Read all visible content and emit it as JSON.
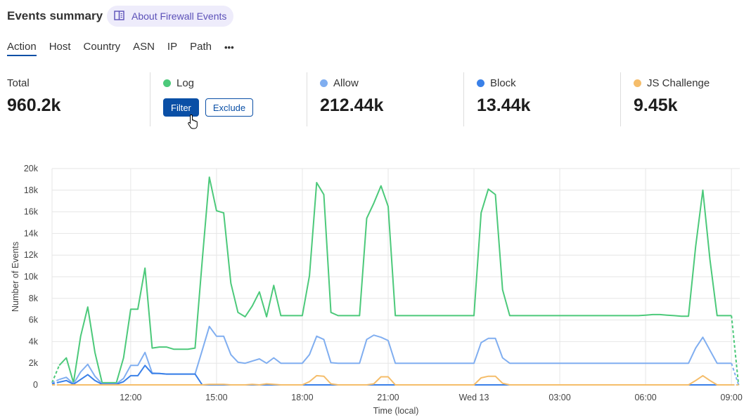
{
  "header": {
    "title": "Events summary",
    "about_label": "About Firewall Events"
  },
  "tabs": [
    {
      "label": "Action",
      "active": true
    },
    {
      "label": "Host"
    },
    {
      "label": "Country"
    },
    {
      "label": "ASN"
    },
    {
      "label": "IP"
    },
    {
      "label": "Path"
    },
    {
      "label": "•••"
    }
  ],
  "stats": {
    "total": {
      "label": "Total",
      "value": "960.2k"
    },
    "log": {
      "label": "Log",
      "color": "#4cc97a",
      "filter_label": "Filter",
      "exclude_label": "Exclude"
    },
    "allow": {
      "label": "Allow",
      "value": "212.44k",
      "color": "#80aef0"
    },
    "block": {
      "label": "Block",
      "value": "13.44k",
      "color": "#3a80e8"
    },
    "js": {
      "label": "JS Challenge",
      "value": "9.45k",
      "color": "#f5bd6a"
    }
  },
  "chart_data": {
    "type": "line",
    "xlabel": "Time (local)",
    "ylabel": "Number of Events",
    "ylim": [
      0,
      20000
    ],
    "yticks": [
      "0",
      "2k",
      "4k",
      "6k",
      "8k",
      "10k",
      "12k",
      "14k",
      "16k",
      "18k",
      "20k"
    ],
    "xticks": [
      {
        "label": "12:00",
        "at": "12:00"
      },
      {
        "label": "15:00",
        "at": "15:00"
      },
      {
        "label": "18:00",
        "at": "18:00"
      },
      {
        "label": "21:00",
        "at": "21:00"
      },
      {
        "label": "Wed 13",
        "at": "00:00"
      },
      {
        "label": "03:00",
        "at": "03:00"
      },
      {
        "label": "06:00",
        "at": "06:00"
      },
      {
        "label": "09:00",
        "at": "09:00"
      }
    ],
    "grid": true,
    "x": [
      "09:15",
      "09:30",
      "09:45",
      "10:00",
      "10:15",
      "10:30",
      "10:45",
      "11:00",
      "11:15",
      "11:30",
      "11:45",
      "12:00",
      "12:15",
      "12:30",
      "12:45",
      "13:00",
      "13:15",
      "13:30",
      "13:45",
      "14:00",
      "14:15",
      "14:30",
      "14:45",
      "15:00",
      "15:15",
      "15:30",
      "15:45",
      "16:00",
      "16:15",
      "16:30",
      "16:45",
      "17:00",
      "17:15",
      "17:30",
      "17:45",
      "18:00",
      "18:15",
      "18:30",
      "18:45",
      "19:00",
      "19:15",
      "19:30",
      "19:45",
      "20:00",
      "20:15",
      "20:30",
      "20:45",
      "21:00",
      "21:15",
      "21:30",
      "21:45",
      "22:00",
      "22:15",
      "22:30",
      "22:45",
      "23:00",
      "23:15",
      "23:30",
      "23:45",
      "00:00",
      "00:15",
      "00:30",
      "00:45",
      "01:00",
      "01:15",
      "01:30",
      "01:45",
      "02:00",
      "02:15",
      "02:30",
      "02:45",
      "03:00",
      "03:15",
      "03:30",
      "03:45",
      "04:00",
      "04:15",
      "04:30",
      "04:45",
      "05:00",
      "05:15",
      "05:30",
      "05:45",
      "06:00",
      "06:15",
      "06:30",
      "06:45",
      "07:00",
      "07:15",
      "07:30",
      "07:45",
      "08:00",
      "08:15",
      "08:30",
      "08:45",
      "09:00",
      "09:15"
    ],
    "series": [
      {
        "name": "Log",
        "color": "#4cc97a",
        "values": [
          200,
          1800,
          2500,
          200,
          4500,
          7200,
          3000,
          200,
          200,
          200,
          2500,
          7000,
          7000,
          10800,
          3400,
          3500,
          3500,
          3300,
          3300,
          3300,
          3400,
          11500,
          19200,
          16100,
          15900,
          9400,
          6700,
          6300,
          7300,
          8600,
          6300,
          9200,
          6400,
          6400,
          6400,
          6400,
          10100,
          18700,
          17600,
          6700,
          6400,
          6400,
          6400,
          6400,
          15400,
          16800,
          18400,
          16500,
          6400,
          6400,
          6400,
          6400,
          6400,
          6400,
          6400,
          6400,
          6400,
          6400,
          6400,
          6400,
          15900,
          18100,
          17600,
          8800,
          6400,
          6400,
          6400,
          6400,
          6400,
          6400,
          6400,
          6400,
          6400,
          6400,
          6400,
          6400,
          6400,
          6400,
          6400,
          6400,
          6400,
          6400,
          6400,
          6450,
          6500,
          6500,
          6450,
          6400,
          6350,
          6350,
          12800,
          18000,
          11600,
          6400,
          6400,
          6400,
          0
        ]
      },
      {
        "name": "Allow",
        "color": "#80aef0",
        "values": [
          200,
          500,
          700,
          100,
          1200,
          1900,
          800,
          100,
          100,
          100,
          600,
          1800,
          1800,
          3000,
          1100,
          1050,
          1000,
          1000,
          1000,
          1000,
          1000,
          3200,
          5400,
          4500,
          4500,
          2800,
          2100,
          2000,
          2200,
          2400,
          2000,
          2500,
          2000,
          2000,
          2000,
          2000,
          2800,
          4500,
          4200,
          2050,
          2000,
          2000,
          2000,
          2000,
          4200,
          4600,
          4400,
          4100,
          2000,
          2000,
          2000,
          2000,
          2000,
          2000,
          2000,
          2000,
          2000,
          2000,
          2000,
          2000,
          3900,
          4300,
          4300,
          2500,
          2000,
          2000,
          2000,
          2000,
          2000,
          2000,
          2000,
          2000,
          2000,
          2000,
          2000,
          2000,
          2000,
          2000,
          2000,
          2000,
          2000,
          2000,
          2000,
          2000,
          2000,
          2000,
          2000,
          2000,
          2000,
          2000,
          3400,
          4400,
          3200,
          2000,
          2000,
          2000,
          0
        ]
      },
      {
        "name": "Block",
        "color": "#3a80e8",
        "values": [
          100,
          250,
          400,
          50,
          500,
          950,
          400,
          50,
          50,
          50,
          300,
          850,
          850,
          1800,
          1050,
          1050,
          1000,
          1000,
          1000,
          1000,
          1000,
          0,
          0,
          0,
          0,
          0,
          0,
          0,
          0,
          0,
          0,
          0,
          0,
          0,
          0,
          0,
          0,
          0,
          0,
          0,
          0,
          0,
          0,
          0,
          0,
          0,
          0,
          0,
          0,
          0,
          0,
          0,
          0,
          0,
          0,
          0,
          0,
          0,
          0,
          0,
          0,
          0,
          0,
          0,
          0,
          0,
          0,
          0,
          0,
          0,
          0,
          0,
          0,
          0,
          0,
          0,
          0,
          0,
          0,
          0,
          0,
          0,
          0,
          0,
          0,
          0,
          0,
          0,
          0,
          0,
          0,
          0,
          0,
          0,
          0,
          0,
          0
        ]
      },
      {
        "name": "JS Challenge",
        "color": "#f5bd6a",
        "values": [
          0,
          0,
          0,
          0,
          0,
          0,
          0,
          0,
          0,
          0,
          0,
          0,
          0,
          0,
          0,
          0,
          0,
          0,
          0,
          0,
          0,
          0,
          50,
          50,
          50,
          0,
          0,
          0,
          50,
          0,
          100,
          50,
          0,
          0,
          0,
          0,
          300,
          850,
          800,
          100,
          0,
          0,
          0,
          0,
          0,
          100,
          750,
          750,
          0,
          0,
          0,
          0,
          0,
          0,
          0,
          0,
          0,
          0,
          0,
          0,
          650,
          800,
          800,
          150,
          0,
          0,
          0,
          0,
          0,
          0,
          0,
          0,
          0,
          0,
          0,
          0,
          0,
          0,
          0,
          0,
          0,
          0,
          0,
          0,
          0,
          0,
          0,
          0,
          0,
          0,
          400,
          850,
          400,
          0,
          0,
          0,
          0
        ]
      }
    ]
  }
}
